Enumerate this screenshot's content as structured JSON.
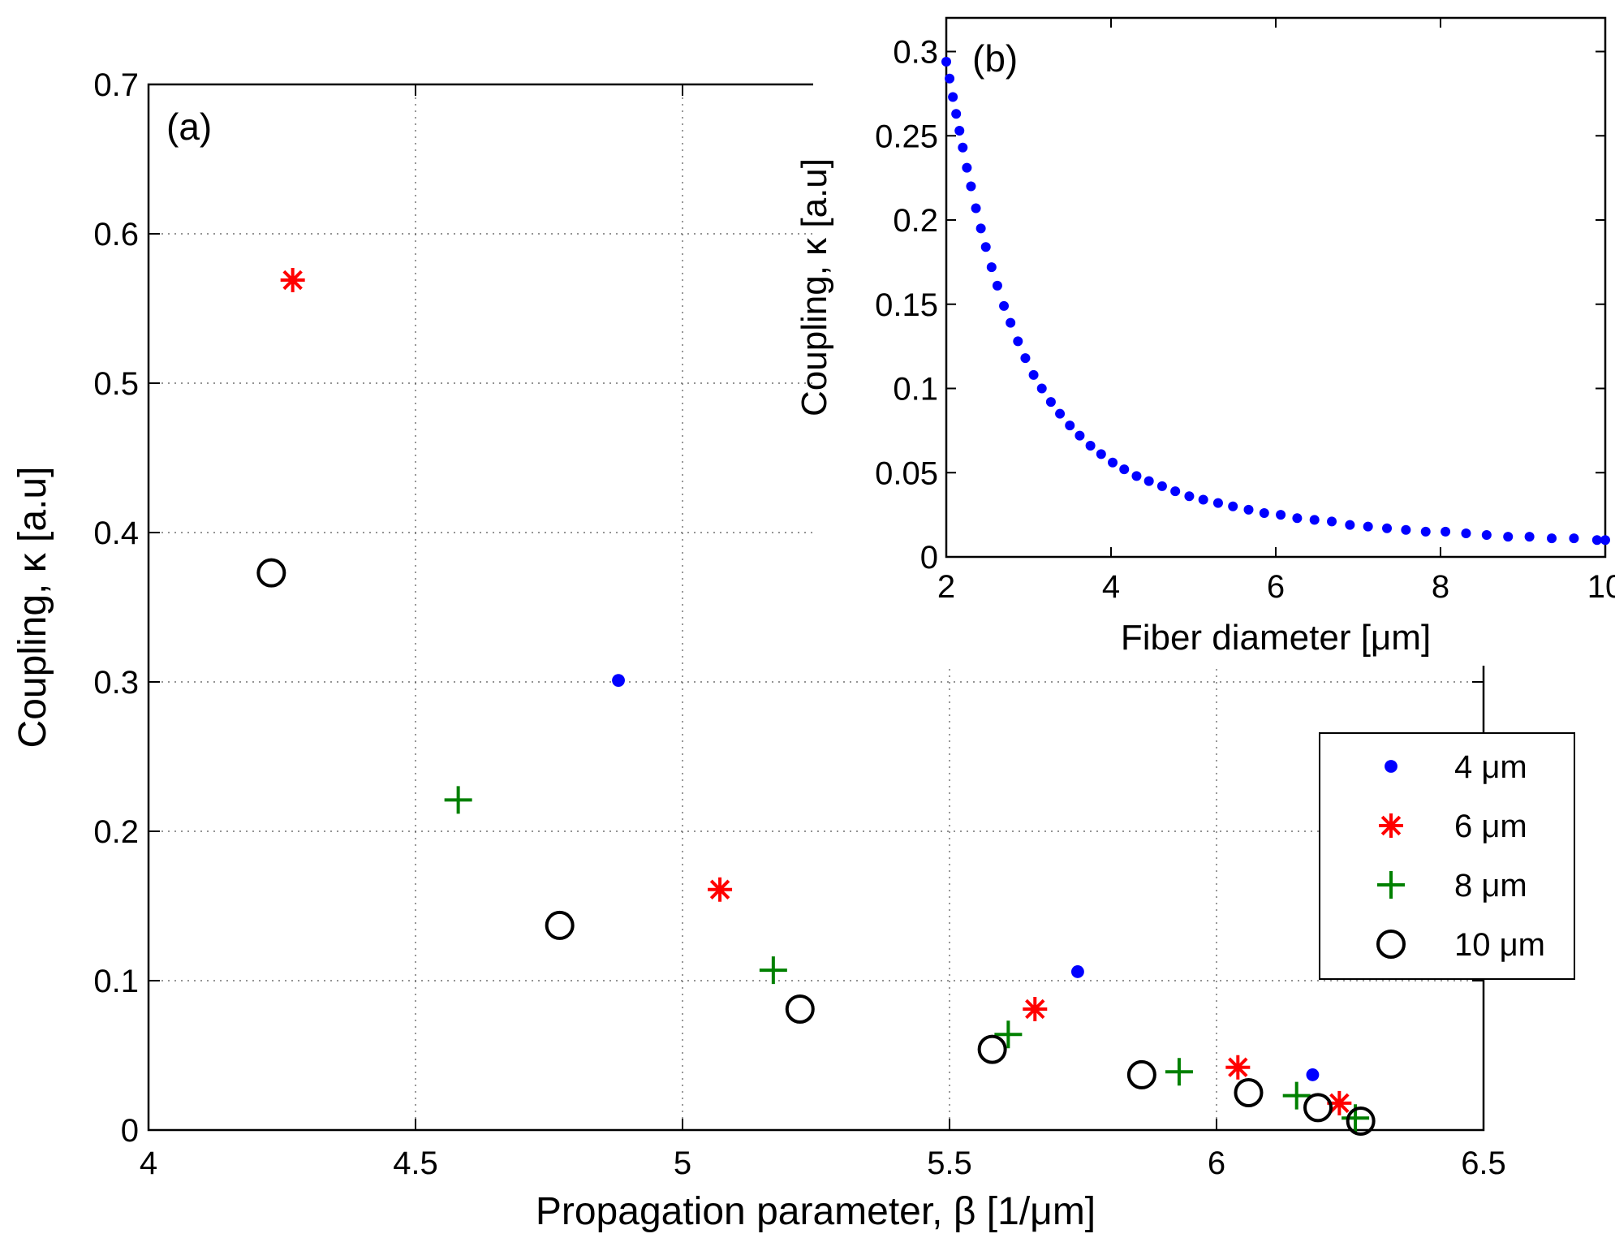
{
  "chart_data": [
    {
      "panel": "(a)",
      "type": "scatter",
      "xlabel": "Propagation parameter, β [1/μm]",
      "ylabel": "Coupling, κ [a.u]",
      "xlim": [
        4,
        6.5
      ],
      "ylim": [
        0,
        0.7
      ],
      "xticks": [
        "4",
        "4.5",
        "5",
        "5.5",
        "6",
        "6.5"
      ],
      "yticks": [
        "0",
        "0.1",
        "0.2",
        "0.3",
        "0.4",
        "0.5",
        "0.6",
        "0.7"
      ],
      "grid": true,
      "legend_position": "lower-right",
      "series": [
        {
          "name": "4 μm",
          "marker": "dot",
          "color": "#0000ff",
          "x": [
            4.88,
            5.74,
            6.18
          ],
          "y": [
            0.301,
            0.106,
            0.037
          ]
        },
        {
          "name": "6 μm",
          "marker": "asterisk",
          "color": "#ff0000",
          "x": [
            4.27,
            5.07,
            5.66,
            6.04,
            6.23
          ],
          "y": [
            0.569,
            0.161,
            0.081,
            0.042,
            0.018
          ]
        },
        {
          "name": "8 μm",
          "marker": "plus",
          "color": "#008000",
          "x": [
            4.58,
            5.17,
            5.61,
            5.93,
            6.15,
            6.26
          ],
          "y": [
            0.221,
            0.107,
            0.064,
            0.039,
            0.023,
            0.008
          ]
        },
        {
          "name": "10 μm",
          "marker": "circle",
          "color": "#000000",
          "x": [
            4.23,
            4.77,
            5.22,
            5.58,
            5.86,
            6.06,
            6.19,
            6.27
          ],
          "y": [
            0.373,
            0.137,
            0.081,
            0.054,
            0.037,
            0.025,
            0.015,
            0.006
          ]
        }
      ]
    },
    {
      "panel": "(b)",
      "type": "scatter",
      "xlabel": "Fiber diameter [μm]",
      "ylabel": "Coupling, κ [a.u]",
      "xlim": [
        2,
        10
      ],
      "ylim": [
        0,
        0.32
      ],
      "xticks": [
        "2",
        "4",
        "6",
        "8",
        "10"
      ],
      "yticks": [
        "0",
        "0.05",
        "0.1",
        "0.15",
        "0.2",
        "0.25",
        "0.3"
      ],
      "grid": false,
      "series": [
        {
          "marker": "dot",
          "color": "#0000ff",
          "x": [
            2.0,
            2.04,
            2.08,
            2.12,
            2.16,
            2.2,
            2.25,
            2.3,
            2.36,
            2.42,
            2.48,
            2.55,
            2.62,
            2.7,
            2.78,
            2.87,
            2.96,
            3.06,
            3.16,
            3.27,
            3.38,
            3.5,
            3.62,
            3.75,
            3.88,
            4.02,
            4.16,
            4.31,
            4.46,
            4.62,
            4.78,
            4.95,
            5.12,
            5.3,
            5.48,
            5.67,
            5.86,
            6.06,
            6.26,
            6.47,
            6.68,
            6.9,
            7.12,
            7.35,
            7.58,
            7.82,
            8.06,
            8.31,
            8.56,
            8.82,
            9.08,
            9.35,
            9.62,
            9.9,
            10.0
          ],
          "y": [
            0.294,
            0.284,
            0.273,
            0.263,
            0.253,
            0.243,
            0.231,
            0.22,
            0.207,
            0.195,
            0.184,
            0.172,
            0.161,
            0.149,
            0.139,
            0.128,
            0.118,
            0.108,
            0.1,
            0.092,
            0.085,
            0.078,
            0.072,
            0.066,
            0.061,
            0.056,
            0.052,
            0.048,
            0.045,
            0.042,
            0.039,
            0.036,
            0.034,
            0.032,
            0.03,
            0.028,
            0.026,
            0.025,
            0.023,
            0.022,
            0.021,
            0.019,
            0.018,
            0.017,
            0.016,
            0.015,
            0.015,
            0.014,
            0.013,
            0.012,
            0.012,
            0.011,
            0.011,
            0.01,
            0.01
          ]
        }
      ]
    }
  ]
}
